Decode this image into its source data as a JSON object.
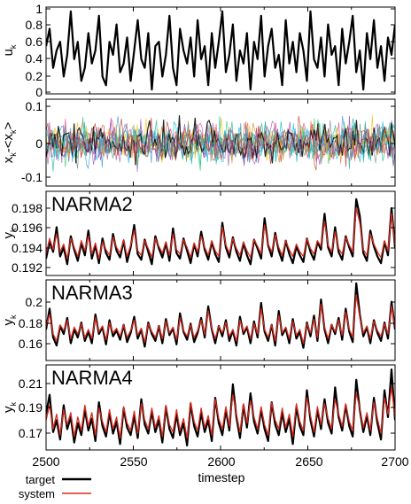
{
  "chart_data": [
    {
      "type": "line",
      "key": "input",
      "ylabel": "u",
      "ylabel_sub": "k",
      "ylim": [
        0,
        1
      ],
      "yticks": [
        "0",
        "0.2",
        "0.4",
        "0.6",
        "0.8",
        "1"
      ],
      "series": [
        {
          "values": [
            0.55,
            0.75,
            0.3,
            0.5,
            0.6,
            0.2,
            0.45,
            0.95,
            0.4,
            0.6,
            0.15,
            0.3,
            0.7,
            0.35,
            0.5,
            0.9,
            0.2,
            0.1,
            0.6,
            0.45,
            0.8,
            0.25,
            0.35,
            0.65,
            0.15,
            0.5,
            0.85,
            0.4,
            0.3,
            0.7,
            0.05,
            0.55,
            0.6,
            0.2,
            0.45,
            0.9,
            0.3,
            0.1,
            0.75,
            0.5,
            0.35,
            0.65,
            0.2,
            0.85,
            0.4,
            0.55,
            0.1,
            0.7,
            0.3,
            0.6,
            0.95,
            0.25,
            0.45,
            0.8,
            0.15,
            0.5,
            0.35,
            0.7,
            0.05,
            0.6,
            0.4,
            0.9,
            0.2,
            0.55,
            0.75,
            0.3,
            0.45,
            0.1,
            0.85,
            0.35,
            0.6,
            0.25,
            0.7,
            0.5,
            0.15,
            0.95,
            0.4,
            0.3,
            0.65,
            0.2,
            0.8,
            0.45,
            0.55,
            0.1,
            0.75,
            0.35,
            0.6,
            0.9,
            0.25,
            0.5,
            0.05,
            0.7,
            0.4,
            0.85,
            0.3,
            0.55,
            0.15,
            0.65,
            0.45,
            0.8
          ]
        }
      ]
    },
    {
      "type": "line",
      "key": "states",
      "ylabel": "x",
      "ylabel_sub": "k",
      "ylabel_tail": "-<x",
      "ylabel_tail_sub": "k",
      "ylabel_end": ">",
      "ylim": [
        -0.12,
        0.12
      ],
      "yticks": [
        "0.1",
        "0",
        "-0.1"
      ],
      "series_colors": [
        "#e83e8c",
        "#9b59b6",
        "#3498db",
        "#1abc9c",
        "#2ecc71",
        "#f1c40f",
        "#e67e22",
        "#7f8c8d",
        "#000000",
        "#00bcd4",
        "#8e44ad",
        "#c0392b"
      ]
    },
    {
      "type": "line",
      "key": "narma2",
      "title": "NARMA2",
      "ylabel": "y",
      "ylabel_sub": "k",
      "ylim": [
        0.1915,
        0.199
      ],
      "yticks": [
        "0.198",
        "0.196",
        "0.194",
        "0.192"
      ],
      "series": [
        {
          "name": "target",
          "values": [
            0.193,
            0.1945,
            0.1936,
            0.1958,
            0.1932,
            0.194,
            0.1925,
            0.195,
            0.1938,
            0.1928,
            0.1944,
            0.1933,
            0.1955,
            0.193,
            0.1942,
            0.1926,
            0.1948,
            0.1935,
            0.1929,
            0.1952,
            0.1937,
            0.1931,
            0.1946,
            0.1927,
            0.194,
            0.196,
            0.1934,
            0.1929,
            0.1947,
            0.1936,
            0.1925,
            0.195,
            0.1939,
            0.1931,
            0.1944,
            0.1928,
            0.1957,
            0.1935,
            0.193,
            0.1948,
            0.1937,
            0.1926,
            0.1943,
            0.1932,
            0.1954,
            0.1938,
            0.1929,
            0.1945,
            0.1934,
            0.1927,
            0.1962,
            0.194,
            0.1931,
            0.1949,
            0.1936,
            0.1928,
            0.1944,
            0.1933,
            0.1925,
            0.1947,
            0.1939,
            0.193,
            0.1966,
            0.1942,
            0.1932,
            0.1953,
            0.1937,
            0.1928,
            0.1946,
            0.1934,
            0.1926,
            0.1941,
            0.1933,
            0.1927,
            0.1948,
            0.1936,
            0.1929,
            0.1945,
            0.1938,
            0.197,
            0.194,
            0.1932,
            0.1958,
            0.1936,
            0.1929,
            0.195,
            0.194,
            0.1932,
            0.1983,
            0.1968,
            0.1935,
            0.1928,
            0.1955,
            0.1941,
            0.1932,
            0.1926,
            0.1945,
            0.1933,
            0.1975,
            0.194
          ]
        },
        {
          "name": "system",
          "values": [
            0.1934,
            0.1948,
            0.1938,
            0.1952,
            0.1936,
            0.1943,
            0.193,
            0.1948,
            0.194,
            0.1932,
            0.1946,
            0.1937,
            0.195,
            0.1934,
            0.1944,
            0.193,
            0.1945,
            0.1938,
            0.1933,
            0.1949,
            0.194,
            0.1935,
            0.1947,
            0.1932,
            0.1942,
            0.1955,
            0.1937,
            0.1933,
            0.1946,
            0.1939,
            0.1931,
            0.1948,
            0.1941,
            0.1935,
            0.1945,
            0.1933,
            0.1952,
            0.1938,
            0.1934,
            0.1947,
            0.194,
            0.1931,
            0.1944,
            0.1936,
            0.195,
            0.194,
            0.1933,
            0.1946,
            0.1937,
            0.1932,
            0.1958,
            0.1942,
            0.1935,
            0.1948,
            0.1939,
            0.1933,
            0.1945,
            0.1937,
            0.1931,
            0.1947,
            0.1941,
            0.1934,
            0.196,
            0.1943,
            0.1936,
            0.1951,
            0.194,
            0.1933,
            0.1946,
            0.1938,
            0.1932,
            0.1943,
            0.1936,
            0.1932,
            0.1948,
            0.1939,
            0.1934,
            0.1946,
            0.1941,
            0.1963,
            0.1942,
            0.1936,
            0.1954,
            0.1939,
            0.1934,
            0.1949,
            0.1942,
            0.1936,
            0.1975,
            0.1962,
            0.1938,
            0.1933,
            0.1952,
            0.1943,
            0.1936,
            0.1931,
            0.1946,
            0.1937,
            0.197,
            0.1942
          ]
        }
      ]
    },
    {
      "type": "line",
      "key": "narma3",
      "title": "NARMA3",
      "ylabel": "y",
      "ylabel_sub": "k",
      "ylim": [
        0.145,
        0.215
      ],
      "yticks": [
        "0.2",
        "0.18",
        "0.16"
      ],
      "series": [
        {
          "name": "target",
          "values": [
            0.172,
            0.19,
            0.165,
            0.158,
            0.175,
            0.168,
            0.182,
            0.16,
            0.172,
            0.165,
            0.178,
            0.162,
            0.17,
            0.16,
            0.185,
            0.168,
            0.174,
            0.159,
            0.18,
            0.166,
            0.171,
            0.163,
            0.176,
            0.161,
            0.169,
            0.183,
            0.164,
            0.172,
            0.157,
            0.178,
            0.168,
            0.162,
            0.175,
            0.16,
            0.181,
            0.167,
            0.173,
            0.159,
            0.186,
            0.17,
            0.163,
            0.177,
            0.161,
            0.169,
            0.182,
            0.165,
            0.192,
            0.172,
            0.16,
            0.175,
            0.166,
            0.18,
            0.162,
            0.171,
            0.158,
            0.183,
            0.168,
            0.174,
            0.16,
            0.179,
            0.165,
            0.195,
            0.17,
            0.162,
            0.176,
            0.158,
            0.188,
            0.167,
            0.173,
            0.16,
            0.181,
            0.164,
            0.17,
            0.156,
            0.178,
            0.166,
            0.184,
            0.162,
            0.198,
            0.172,
            0.16,
            0.176,
            0.168,
            0.182,
            0.163,
            0.19,
            0.17,
            0.161,
            0.212,
            0.185,
            0.166,
            0.174,
            0.16,
            0.18,
            0.169,
            0.162,
            0.178,
            0.164,
            0.196,
            0.172
          ]
        },
        {
          "name": "system",
          "values": [
            0.175,
            0.185,
            0.168,
            0.162,
            0.176,
            0.171,
            0.18,
            0.164,
            0.174,
            0.168,
            0.177,
            0.165,
            0.172,
            0.164,
            0.182,
            0.17,
            0.175,
            0.163,
            0.178,
            0.169,
            0.173,
            0.166,
            0.176,
            0.165,
            0.171,
            0.18,
            0.167,
            0.173,
            0.161,
            0.177,
            0.17,
            0.165,
            0.175,
            0.164,
            0.179,
            0.169,
            0.174,
            0.163,
            0.182,
            0.171,
            0.166,
            0.176,
            0.165,
            0.171,
            0.18,
            0.168,
            0.188,
            0.173,
            0.164,
            0.175,
            0.169,
            0.178,
            0.166,
            0.172,
            0.162,
            0.18,
            0.17,
            0.175,
            0.164,
            0.177,
            0.168,
            0.19,
            0.172,
            0.165,
            0.176,
            0.162,
            0.184,
            0.169,
            0.174,
            0.164,
            0.179,
            0.167,
            0.172,
            0.16,
            0.177,
            0.169,
            0.181,
            0.165,
            0.194,
            0.174,
            0.164,
            0.176,
            0.17,
            0.18,
            0.167,
            0.187,
            0.172,
            0.165,
            0.202,
            0.183,
            0.169,
            0.175,
            0.164,
            0.179,
            0.171,
            0.166,
            0.177,
            0.168,
            0.192,
            0.174
          ]
        }
      ]
    },
    {
      "type": "line",
      "key": "narma4",
      "title": "NARMA4",
      "ylabel": "y",
      "ylabel_sub": "k",
      "ylim": [
        0.158,
        0.215
      ],
      "yticks": [
        "0.21",
        "0.19",
        "0.17"
      ],
      "series": [
        {
          "name": "target",
          "values": [
            0.182,
            0.195,
            0.17,
            0.178,
            0.165,
            0.188,
            0.172,
            0.18,
            0.163,
            0.176,
            0.168,
            0.185,
            0.171,
            0.179,
            0.164,
            0.19,
            0.174,
            0.167,
            0.183,
            0.169,
            0.177,
            0.162,
            0.186,
            0.173,
            0.168,
            0.181,
            0.166,
            0.192,
            0.175,
            0.169,
            0.184,
            0.17,
            0.178,
            0.163,
            0.187,
            0.172,
            0.166,
            0.182,
            0.168,
            0.176,
            0.161,
            0.189,
            0.174,
            0.167,
            0.183,
            0.17,
            0.178,
            0.164,
            0.193,
            0.176,
            0.168,
            0.185,
            0.171,
            0.202,
            0.18,
            0.166,
            0.188,
            0.173,
            0.196,
            0.177,
            0.169,
            0.185,
            0.172,
            0.164,
            0.19,
            0.175,
            0.168,
            0.183,
            0.17,
            0.179,
            0.162,
            0.187,
            0.174,
            0.168,
            0.198,
            0.178,
            0.167,
            0.185,
            0.172,
            0.192,
            0.176,
            0.169,
            0.2,
            0.18,
            0.171,
            0.188,
            0.174,
            0.167,
            0.205,
            0.185,
            0.17,
            0.181,
            0.168,
            0.193,
            0.176,
            0.165,
            0.198,
            0.18,
            0.212,
            0.178
          ]
        },
        {
          "name": "system",
          "values": [
            0.178,
            0.188,
            0.172,
            0.182,
            0.168,
            0.185,
            0.175,
            0.183,
            0.167,
            0.18,
            0.171,
            0.188,
            0.174,
            0.183,
            0.168,
            0.186,
            0.177,
            0.17,
            0.185,
            0.172,
            0.18,
            0.166,
            0.187,
            0.176,
            0.171,
            0.184,
            0.169,
            0.189,
            0.178,
            0.172,
            0.186,
            0.173,
            0.181,
            0.167,
            0.188,
            0.175,
            0.17,
            0.185,
            0.171,
            0.179,
            0.166,
            0.19,
            0.177,
            0.171,
            0.186,
            0.173,
            0.181,
            0.168,
            0.192,
            0.179,
            0.172,
            0.187,
            0.174,
            0.195,
            0.182,
            0.17,
            0.189,
            0.176,
            0.191,
            0.18,
            0.172,
            0.187,
            0.175,
            0.168,
            0.19,
            0.178,
            0.172,
            0.186,
            0.173,
            0.182,
            0.167,
            0.189,
            0.177,
            0.171,
            0.193,
            0.181,
            0.17,
            0.187,
            0.175,
            0.189,
            0.179,
            0.172,
            0.192,
            0.182,
            0.174,
            0.189,
            0.177,
            0.171,
            0.196,
            0.186,
            0.173,
            0.183,
            0.171,
            0.19,
            0.179,
            0.169,
            0.193,
            0.182,
            0.2,
            0.18
          ]
        }
      ]
    }
  ],
  "x_axis": {
    "label": "timestep",
    "xlim": [
      2500,
      2700
    ],
    "ticks": [
      "2500",
      "2550",
      "2600",
      "2650",
      "2700"
    ]
  },
  "legend": {
    "entries": [
      {
        "label": "target",
        "color": "#000000"
      },
      {
        "label": "system",
        "color": "#d62a1e"
      }
    ]
  },
  "colors": {
    "target": "#000000",
    "system": "#d62a1e"
  }
}
